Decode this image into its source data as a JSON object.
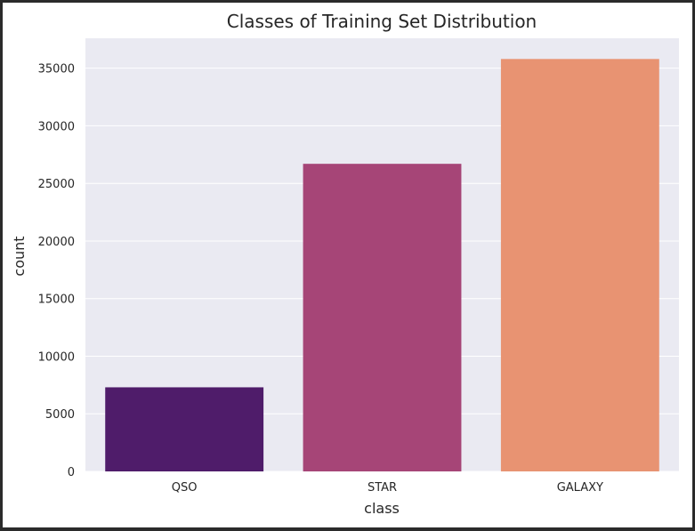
{
  "chart_data": {
    "type": "bar",
    "title": "Classes of Training Set Distribution",
    "xlabel": "class",
    "ylabel": "count",
    "categories": [
      "QSO",
      "STAR",
      "GALAXY"
    ],
    "values": [
      7300,
      26700,
      35800
    ],
    "colors": [
      "#4f1c6a",
      "#a64577",
      "#e89372"
    ],
    "ylim": [
      0,
      37600
    ],
    "yticks": [
      0,
      5000,
      10000,
      15000,
      20000,
      25000,
      30000,
      35000
    ],
    "grid": true,
    "background": "#eaeaf2"
  }
}
